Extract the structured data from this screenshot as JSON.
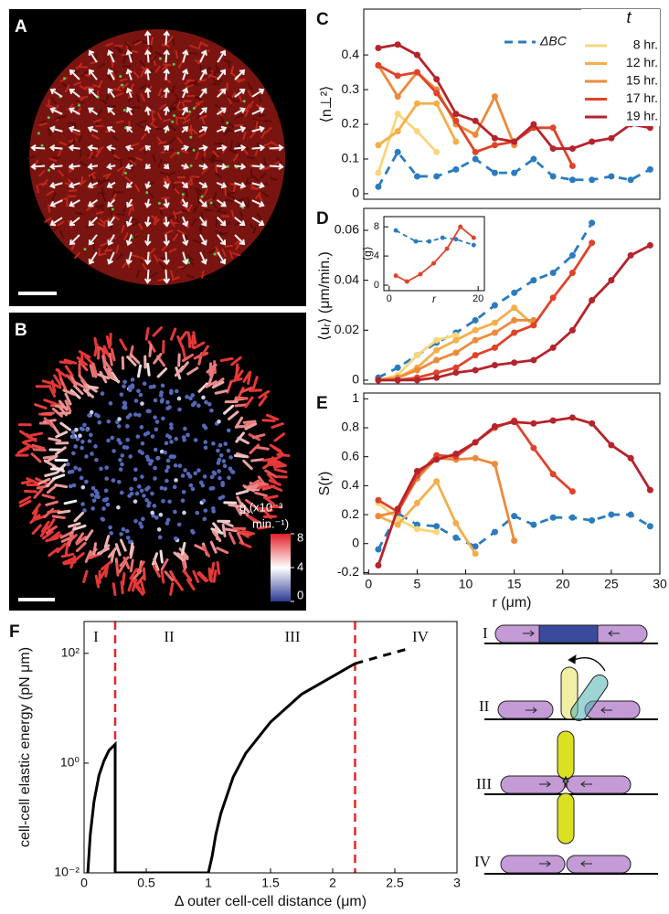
{
  "panels": {
    "a": "A",
    "b": "B"
  },
  "colorbar": {
    "label_lines": [
      "g (x10⁻³",
      "min.⁻¹)"
    ],
    "range": [
      0,
      8
    ],
    "ticks": [
      8,
      4,
      0
    ],
    "colors": [
      "#2d3c94",
      "#ffffff",
      "#e3202b"
    ]
  },
  "schematic": {
    "labels": [
      "I",
      "II",
      "III",
      "IV"
    ]
  },
  "chart_data": [
    {
      "type": "line",
      "label": "C",
      "ylabel": "⟨n⊥²⟩",
      "xlim": [
        -0.5,
        30
      ],
      "ylim": [
        -0.016,
        0.532
      ],
      "yticks": [
        0,
        0.1,
        0.2,
        0.3,
        0.4
      ],
      "legend_title": "t",
      "series": [
        {
          "name": "ΔBC",
          "color": "#2b7bbf",
          "dashed": true,
          "markers": true,
          "x": [
            1,
            3,
            5,
            7,
            9,
            11,
            13,
            15,
            17,
            19,
            21,
            23,
            25,
            27,
            29
          ],
          "values": [
            0.02,
            0.12,
            0.05,
            0.05,
            0.07,
            0.1,
            0.06,
            0.06,
            0.1,
            0.05,
            0.04,
            0.04,
            0.05,
            0.04,
            0.07
          ]
        },
        {
          "name": "8 hr.",
          "color": "#f7d77c",
          "markers": true,
          "x": [
            1,
            3,
            5,
            7
          ],
          "values": [
            0.06,
            0.23,
            0.18,
            0.12
          ]
        },
        {
          "name": "12 hr.",
          "color": "#f5ae4a",
          "markers": true,
          "x": [
            1,
            3,
            5,
            7,
            9
          ],
          "values": [
            0.14,
            0.18,
            0.26,
            0.26,
            0.15
          ]
        },
        {
          "name": "15 hr.",
          "color": "#ec8a3b",
          "markers": true,
          "x": [
            1,
            3,
            5,
            7,
            9,
            11,
            13,
            15
          ],
          "values": [
            0.37,
            0.28,
            0.35,
            0.3,
            0.2,
            0.17,
            0.28,
            0.14
          ]
        },
        {
          "name": "17 hr.",
          "color": "#e0432a",
          "markers": true,
          "x": [
            1,
            3,
            5,
            7,
            9,
            11,
            13,
            15,
            17,
            19,
            21
          ],
          "values": [
            0.37,
            0.34,
            0.35,
            0.29,
            0.21,
            0.12,
            0.14,
            0.15,
            0.19,
            0.19,
            0.08
          ]
        },
        {
          "name": "19 hr.",
          "color": "#b5232b",
          "markers": true,
          "x": [
            1,
            3,
            5,
            7,
            9,
            11,
            13,
            15,
            17,
            19,
            21,
            23,
            25,
            27,
            29
          ],
          "values": [
            0.42,
            0.43,
            0.4,
            0.33,
            0.23,
            0.21,
            0.16,
            0.15,
            0.2,
            0.13,
            0.13,
            0.15,
            0.16,
            0.2,
            0.19
          ]
        }
      ]
    },
    {
      "type": "line",
      "label": "D",
      "ylabel": "⟨uᵣ⟩ (μm/min.)",
      "xlim": [
        -0.5,
        30
      ],
      "ylim": [
        -0.0015,
        0.0688
      ],
      "yticks": [
        0,
        0.02,
        0.04,
        0.06
      ],
      "series": [
        {
          "color": "#2b7bbf",
          "dashed": true,
          "markers": true,
          "x": [
            1,
            3,
            5,
            7,
            9,
            11,
            13,
            15,
            17,
            19,
            21,
            23
          ],
          "values": [
            0.001,
            0.005,
            0.01,
            0.015,
            0.019,
            0.024,
            0.03,
            0.035,
            0.04,
            0.043,
            0.05,
            0.063
          ]
        },
        {
          "color": "#f7d77c",
          "markers": true,
          "x": [
            1,
            3,
            5,
            7,
            9
          ],
          "values": [
            0,
            0.002,
            0.01,
            0.016,
            0.018
          ]
        },
        {
          "color": "#f5ae4a",
          "markers": true,
          "x": [
            1,
            3,
            5,
            7,
            9,
            11,
            13,
            15,
            17
          ],
          "values": [
            0,
            0.001,
            0.005,
            0.012,
            0.016,
            0.02,
            0.023,
            0.029,
            0.022
          ]
        },
        {
          "color": "#ec8a3b",
          "markers": true,
          "x": [
            1,
            3,
            5,
            7,
            9,
            11,
            13,
            15,
            17
          ],
          "values": [
            0,
            0.001,
            0.004,
            0.008,
            0.011,
            0.016,
            0.019,
            0.024,
            0.024
          ]
        },
        {
          "color": "#e0432a",
          "markers": true,
          "x": [
            1,
            3,
            5,
            7,
            9,
            11,
            13,
            15,
            17,
            19,
            21,
            23
          ],
          "values": [
            0,
            0,
            0.001,
            0.003,
            0.005,
            0.01,
            0.013,
            0.019,
            0.022,
            0.033,
            0.043,
            0.055
          ]
        },
        {
          "color": "#b5232b",
          "markers": true,
          "x": [
            1,
            3,
            5,
            7,
            9,
            11,
            13,
            15,
            17,
            19,
            21,
            23,
            25,
            27,
            29
          ],
          "values": [
            0,
            0,
            0,
            0.001,
            0.003,
            0.004,
            0.006,
            0.007,
            0.008,
            0.013,
            0.02,
            0.032,
            0.04,
            0.05,
            0.054
          ]
        }
      ]
    },
    {
      "type": "line",
      "ylabel": "⟨g⟩",
      "xlabel": "r",
      "xlim": [
        -1.2,
        21.4
      ],
      "xticks": [
        0,
        20
      ],
      "ylim": [
        -0.75,
        9.4
      ],
      "yticks": [
        0,
        4,
        8
      ],
      "series": [
        {
          "color": "#2b7bbf",
          "dashed": true,
          "markers": true,
          "x": [
            1.5,
            6,
            9,
            12,
            15,
            19
          ],
          "values": [
            7.5,
            6,
            6,
            6.5,
            6.3,
            5.5
          ]
        },
        {
          "color": "#e0432a",
          "markers": true,
          "x": [
            1.5,
            4,
            7,
            10,
            13,
            16,
            19
          ],
          "values": [
            1.3,
            0.5,
            1.5,
            3,
            5,
            8,
            6.5
          ]
        }
      ]
    },
    {
      "type": "line",
      "label": "E",
      "ylabel": "S(r)",
      "xlabel": "r (μm)",
      "xlim": [
        -0.5,
        30
      ],
      "xticks": [
        0,
        5,
        10,
        15,
        20,
        25,
        30
      ],
      "ylim": [
        -0.21,
        1.04
      ],
      "yticks": [
        -0.2,
        0,
        0.2,
        0.4,
        0.6,
        0.8,
        1
      ],
      "series": [
        {
          "color": "#2b7bbf",
          "dashed": true,
          "markers": true,
          "x": [
            1,
            3,
            5,
            7,
            9,
            11,
            13,
            15,
            17,
            19,
            21,
            23,
            25,
            27,
            29
          ],
          "values": [
            -0.04,
            0.21,
            0.13,
            0.12,
            0.04,
            -0.02,
            0.08,
            0.19,
            0.13,
            0.18,
            0.18,
            0.16,
            0.2,
            0.2,
            0.12
          ]
        },
        {
          "color": "#f7d77c",
          "markers": true,
          "x": [
            1,
            3,
            5,
            7
          ],
          "values": [
            0.28,
            0.17,
            0.1,
            0.08
          ]
        },
        {
          "color": "#f5ae4a",
          "markers": true,
          "x": [
            1,
            3,
            5,
            7,
            9,
            11
          ],
          "values": [
            0.19,
            0.13,
            0.28,
            0.43,
            0.14,
            -0.07
          ]
        },
        {
          "color": "#ec8a3b",
          "markers": true,
          "x": [
            1,
            3,
            5,
            7,
            9,
            11,
            13,
            15
          ],
          "values": [
            0.19,
            0.22,
            0.45,
            0.59,
            0.58,
            0.59,
            0.55,
            0.02
          ]
        },
        {
          "color": "#e0432a",
          "markers": true,
          "x": [
            1,
            3,
            5,
            7,
            9,
            11,
            13,
            15,
            17,
            19,
            21
          ],
          "values": [
            0.3,
            0.22,
            0.47,
            0.61,
            0.6,
            0.7,
            0.8,
            0.85,
            0.66,
            0.48,
            0.36
          ]
        },
        {
          "color": "#b5232b",
          "markers": true,
          "x": [
            1,
            3,
            5,
            7,
            9,
            11,
            13,
            15,
            17,
            19,
            21,
            23,
            25,
            27,
            29
          ],
          "values": [
            -0.15,
            0.24,
            0.5,
            0.58,
            0.62,
            0.7,
            0.81,
            0.84,
            0.83,
            0.85,
            0.87,
            0.83,
            0.68,
            0.59,
            0.37
          ]
        }
      ]
    },
    {
      "type": "line",
      "label": "F",
      "ylabel": "cell-cell elastic energy (pN μm)",
      "xlabel": "Δ outer cell-cell distance (μm)",
      "xlim": [
        0,
        3
      ],
      "xticks": [
        0,
        0.5,
        1,
        1.5,
        2,
        2.5,
        3
      ],
      "yscale": "log",
      "ylim": [
        0.01,
        380
      ],
      "yticks": [
        {
          "value": 0.01,
          "label": "10⁻²"
        },
        {
          "value": 1,
          "label": "10⁰"
        },
        {
          "value": 100,
          "label": "10²"
        }
      ],
      "vlines": [
        0.25,
        2.18
      ],
      "vline_color": "#e3262b",
      "regions": [
        "I",
        "II",
        "III",
        "IV"
      ],
      "series": [
        {
          "color": "#000000",
          "x": [
            0.03,
            0.05,
            0.08,
            0.12,
            0.16,
            0.2,
            0.25,
            0.25,
            0.5,
            0.75,
            1.0,
            1.03,
            1.06,
            1.1,
            1.2,
            1.3,
            1.5,
            1.75,
            2.0,
            2.18
          ],
          "values": [
            0.01,
            0.05,
            0.2,
            0.6,
            1.1,
            1.7,
            2.2,
            0.01,
            0.01,
            0.01,
            0.01,
            0.02,
            0.05,
            0.12,
            0.56,
            1.5,
            5.6,
            18,
            38,
            65
          ]
        },
        {
          "color": "#000000",
          "dashed": true,
          "x": [
            2.18,
            2.4,
            2.6
          ],
          "values": [
            65,
            90,
            120
          ]
        }
      ]
    }
  ]
}
